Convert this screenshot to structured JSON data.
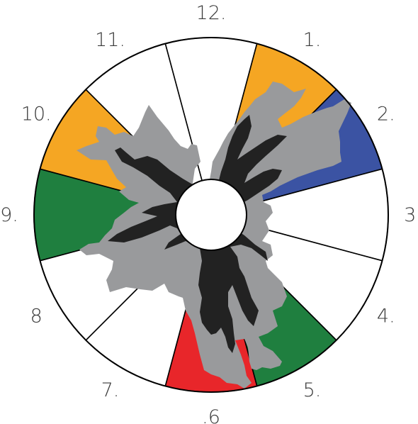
{
  "diagram": {
    "colors": {
      "orange": "#f5a623",
      "blue": "#3b53a3",
      "green": "#1f7f3f",
      "red": "#e8262a",
      "white": "#ffffff",
      "outline": "#000000",
      "outer_shape": "#999a9c",
      "inner_shape": "#222222"
    },
    "segments": [
      {
        "label": "12.",
        "fill": "white"
      },
      {
        "label": "1.",
        "fill": "orange"
      },
      {
        "label": "2.",
        "fill": "blue"
      },
      {
        "label": "3.",
        "fill": "white"
      },
      {
        "label": "4.",
        "fill": "white"
      },
      {
        "label": "5.",
        "fill": "green"
      },
      {
        "label": ".6",
        "fill": "red"
      },
      {
        "label": "7.",
        "fill": "white"
      },
      {
        "label": "8",
        "fill": "white"
      },
      {
        "label": "9.",
        "fill": "green"
      },
      {
        "label": "10.",
        "fill": "orange"
      },
      {
        "label": "11.",
        "fill": "white"
      }
    ]
  }
}
